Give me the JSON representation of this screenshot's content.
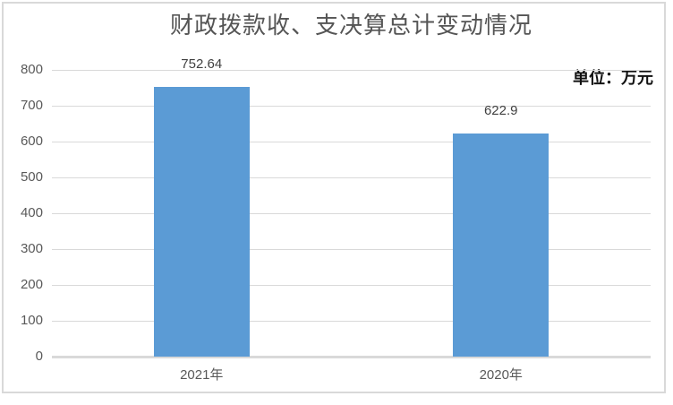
{
  "chart_data": {
    "type": "bar",
    "title": "财政拨款收、支决算总计变动情况",
    "unit_label": "单位：万元",
    "categories": [
      "2021年",
      "2020年"
    ],
    "values": [
      752.64,
      622.9
    ],
    "value_labels": [
      "752.64",
      "622.9"
    ],
    "xlabel": "",
    "ylabel": "",
    "ylim": [
      0,
      800
    ],
    "ytick_step": 100,
    "ytick_labels": [
      "0",
      "100",
      "200",
      "300",
      "400",
      "500",
      "600",
      "700",
      "800"
    ],
    "grid": true,
    "legend": false,
    "bar_color": "#5B9BD5",
    "gridline_color": "#D9D9D9",
    "frame_border_color": "#D9D9D9",
    "axis_label_color": "#595959",
    "value_label_color": "#404040",
    "title_color": "#555555"
  }
}
